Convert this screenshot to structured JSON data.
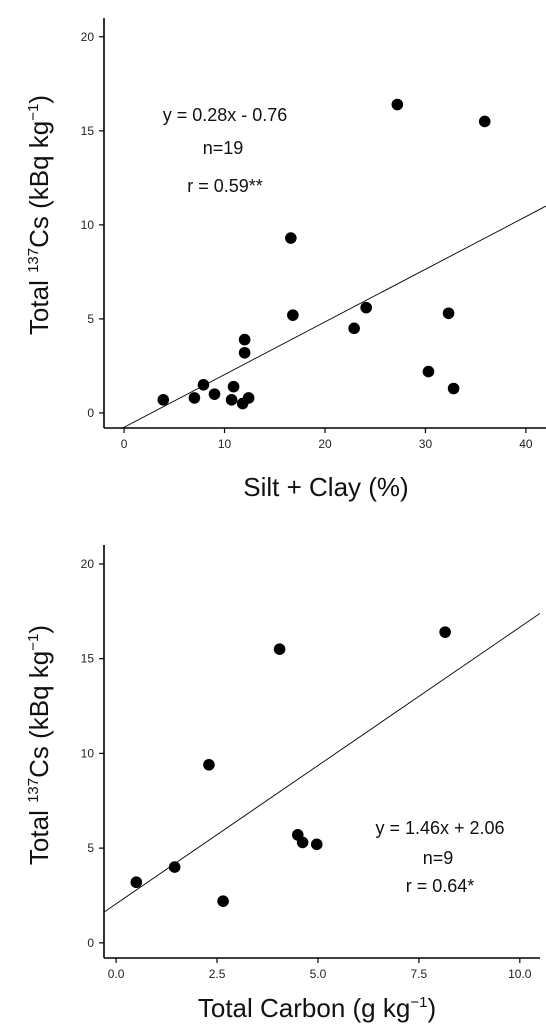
{
  "chart_data": [
    {
      "type": "scatter",
      "title": "",
      "xlabel": "Silt + Clay (%)",
      "ylabel": {
        "pre": "Total ",
        "sup": "137",
        "mid": "Cs (kBq kg",
        "sup2": "−1",
        "post": ")"
      },
      "xlim": [
        -2,
        42
      ],
      "ylim": [
        -0.8,
        21
      ],
      "xticks": [
        0,
        10,
        20,
        30,
        40
      ],
      "yticks": [
        0,
        5,
        10,
        15,
        20
      ],
      "xtick_labels": [
        "0",
        "10",
        "20",
        "30",
        "40"
      ],
      "ytick_labels": [
        "0",
        "5",
        "10",
        "15",
        "20"
      ],
      "points": [
        {
          "x": 3.9,
          "y": 0.7
        },
        {
          "x": 7.0,
          "y": 0.8
        },
        {
          "x": 7.9,
          "y": 1.5
        },
        {
          "x": 9.0,
          "y": 1.0
        },
        {
          "x": 10.7,
          "y": 0.7
        },
        {
          "x": 10.9,
          "y": 1.4
        },
        {
          "x": 11.8,
          "y": 0.5
        },
        {
          "x": 12.0,
          "y": 3.9
        },
        {
          "x": 12.0,
          "y": 3.2
        },
        {
          "x": 12.4,
          "y": 0.8
        },
        {
          "x": 16.6,
          "y": 9.3
        },
        {
          "x": 16.8,
          "y": 5.2
        },
        {
          "x": 22.9,
          "y": 4.5
        },
        {
          "x": 24.1,
          "y": 5.6
        },
        {
          "x": 27.2,
          "y": 16.4
        },
        {
          "x": 30.3,
          "y": 2.2
        },
        {
          "x": 32.3,
          "y": 5.3
        },
        {
          "x": 32.8,
          "y": 1.3
        },
        {
          "x": 35.9,
          "y": 15.5
        }
      ],
      "fit": {
        "slope": 0.28,
        "intercept": -0.76
      },
      "annotations": [
        "y = 0.28x - 0.76",
        "n=19",
        "r = 0.59**"
      ],
      "grid": false,
      "legend": "none"
    },
    {
      "type": "scatter",
      "title": "",
      "xlabel": {
        "pre": "Total Carbon (g kg",
        "sup": "−1",
        "post": ")"
      },
      "ylabel": {
        "pre": "Total ",
        "sup": "137",
        "mid": "Cs (kBq kg",
        "sup2": "−1",
        "post": ")"
      },
      "xlim": [
        -0.3,
        10.5
      ],
      "ylim": [
        -0.8,
        21
      ],
      "xticks": [
        0,
        2.5,
        5,
        7.5,
        10
      ],
      "yticks": [
        0,
        5,
        10,
        15,
        20
      ],
      "xtick_labels": [
        "0.0",
        "2.5",
        "5.0",
        "7.5",
        "10.0"
      ],
      "ytick_labels": [
        "0",
        "5",
        "10",
        "15",
        "20"
      ],
      "points": [
        {
          "x": 0.5,
          "y": 3.2
        },
        {
          "x": 1.45,
          "y": 4.0
        },
        {
          "x": 2.3,
          "y": 9.4
        },
        {
          "x": 2.65,
          "y": 2.2
        },
        {
          "x": 4.05,
          "y": 15.5
        },
        {
          "x": 4.5,
          "y": 5.7
        },
        {
          "x": 4.62,
          "y": 5.3
        },
        {
          "x": 4.97,
          "y": 5.2
        },
        {
          "x": 8.15,
          "y": 16.4
        }
      ],
      "fit": {
        "slope": 1.46,
        "intercept": 2.06
      },
      "annotations": [
        "y = 1.46x + 2.06",
        "n=9",
        "r = 0.64*"
      ],
      "grid": false,
      "legend": "none"
    }
  ]
}
